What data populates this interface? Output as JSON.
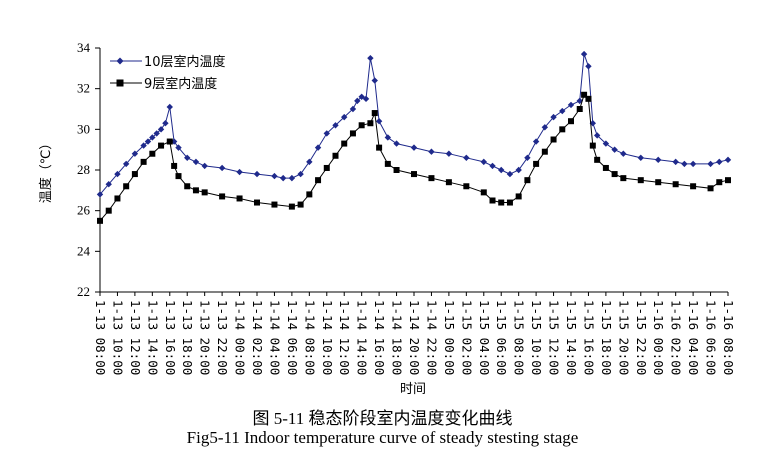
{
  "chart_data": {
    "type": "line",
    "xlabel": "时间",
    "ylabel": "温度（℃）",
    "ylim": [
      22,
      34
    ],
    "yticks": [
      22,
      24,
      26,
      28,
      30,
      32,
      34
    ],
    "grid": false,
    "legend_position": "top-left",
    "x_tick_labels": [
      "1-13 08:00",
      "1-13 10:00",
      "1-13 12:00",
      "1-13 14:00",
      "1-13 16:00",
      "1-13 18:00",
      "1-13 20:00",
      "1-13 22:00",
      "1-14 00:00",
      "1-14 02:00",
      "1-14 04:00",
      "1-14 06:00",
      "1-14 08:00",
      "1-14 10:00",
      "1-14 12:00",
      "1-14 14:00",
      "1-14 16:00",
      "1-14 18:00",
      "1-14 20:00",
      "1-14 22:00",
      "1-15 00:00",
      "1-15 02:00",
      "1-15 04:00",
      "1-15 06:00",
      "1-15 08:00",
      "1-15 10:00",
      "1-15 12:00",
      "1-15 14:00",
      "1-15 16:00",
      "1-15 18:00",
      "1-15 20:00",
      "1-15 22:00",
      "1-16 00:00",
      "1-16 02:00",
      "1-16 04:00",
      "1-16 06:00",
      "1-16 08:00"
    ],
    "x_hours_range": [
      0,
      72
    ],
    "series": [
      {
        "name": "10层室内温度",
        "color": "#1f2a8c",
        "marker": "diamond",
        "points": [
          [
            0,
            26.8
          ],
          [
            1,
            27.3
          ],
          [
            2,
            27.8
          ],
          [
            3,
            28.3
          ],
          [
            4,
            28.8
          ],
          [
            5,
            29.2
          ],
          [
            5.5,
            29.4
          ],
          [
            6,
            29.6
          ],
          [
            6.5,
            29.8
          ],
          [
            7,
            30.0
          ],
          [
            7.5,
            30.3
          ],
          [
            8,
            31.1
          ],
          [
            8.5,
            29.4
          ],
          [
            9,
            29.1
          ],
          [
            10,
            28.6
          ],
          [
            11,
            28.4
          ],
          [
            12,
            28.2
          ],
          [
            14,
            28.1
          ],
          [
            16,
            27.9
          ],
          [
            18,
            27.8
          ],
          [
            20,
            27.7
          ],
          [
            21,
            27.6
          ],
          [
            22,
            27.6
          ],
          [
            23,
            27.8
          ],
          [
            24,
            28.4
          ],
          [
            25,
            29.1
          ],
          [
            26,
            29.8
          ],
          [
            27,
            30.2
          ],
          [
            28,
            30.6
          ],
          [
            29,
            31.0
          ],
          [
            29.5,
            31.4
          ],
          [
            30,
            31.6
          ],
          [
            30.5,
            31.5
          ],
          [
            31,
            33.5
          ],
          [
            31.5,
            32.4
          ],
          [
            32,
            30.4
          ],
          [
            33,
            29.6
          ],
          [
            34,
            29.3
          ],
          [
            36,
            29.1
          ],
          [
            38,
            28.9
          ],
          [
            40,
            28.8
          ],
          [
            42,
            28.6
          ],
          [
            44,
            28.4
          ],
          [
            45,
            28.2
          ],
          [
            46,
            28.0
          ],
          [
            47,
            27.8
          ],
          [
            48,
            28.0
          ],
          [
            49,
            28.6
          ],
          [
            50,
            29.4
          ],
          [
            51,
            30.1
          ],
          [
            52,
            30.6
          ],
          [
            53,
            30.9
          ],
          [
            54,
            31.2
          ],
          [
            55,
            31.4
          ],
          [
            55.5,
            33.7
          ],
          [
            56,
            33.1
          ],
          [
            56.5,
            30.3
          ],
          [
            57,
            29.7
          ],
          [
            58,
            29.3
          ],
          [
            59,
            29.0
          ],
          [
            60,
            28.8
          ],
          [
            62,
            28.6
          ],
          [
            64,
            28.5
          ],
          [
            66,
            28.4
          ],
          [
            67,
            28.3
          ],
          [
            68,
            28.3
          ],
          [
            70,
            28.3
          ],
          [
            71,
            28.4
          ],
          [
            72,
            28.5
          ]
        ]
      },
      {
        "name": "9层室内温度",
        "color": "#000000",
        "marker": "square",
        "points": [
          [
            0,
            25.5
          ],
          [
            1,
            26.0
          ],
          [
            2,
            26.6
          ],
          [
            3,
            27.2
          ],
          [
            4,
            27.8
          ],
          [
            5,
            28.4
          ],
          [
            6,
            28.8
          ],
          [
            7,
            29.2
          ],
          [
            8,
            29.4
          ],
          [
            8.5,
            28.2
          ],
          [
            9,
            27.7
          ],
          [
            10,
            27.2
          ],
          [
            11,
            27.0
          ],
          [
            12,
            26.9
          ],
          [
            14,
            26.7
          ],
          [
            16,
            26.6
          ],
          [
            18,
            26.4
          ],
          [
            20,
            26.3
          ],
          [
            22,
            26.2
          ],
          [
            23,
            26.3
          ],
          [
            24,
            26.8
          ],
          [
            25,
            27.5
          ],
          [
            26,
            28.1
          ],
          [
            27,
            28.7
          ],
          [
            28,
            29.3
          ],
          [
            29,
            29.8
          ],
          [
            30,
            30.2
          ],
          [
            31,
            30.3
          ],
          [
            31.5,
            30.8
          ],
          [
            32,
            29.1
          ],
          [
            33,
            28.3
          ],
          [
            34,
            28.0
          ],
          [
            36,
            27.8
          ],
          [
            38,
            27.6
          ],
          [
            40,
            27.4
          ],
          [
            42,
            27.2
          ],
          [
            44,
            26.9
          ],
          [
            45,
            26.5
          ],
          [
            46,
            26.4
          ],
          [
            47,
            26.4
          ],
          [
            48,
            26.7
          ],
          [
            49,
            27.5
          ],
          [
            50,
            28.3
          ],
          [
            51,
            28.9
          ],
          [
            52,
            29.5
          ],
          [
            53,
            30.0
          ],
          [
            54,
            30.4
          ],
          [
            55,
            31.0
          ],
          [
            55.5,
            31.7
          ],
          [
            56,
            31.5
          ],
          [
            56.5,
            29.2
          ],
          [
            57,
            28.5
          ],
          [
            58,
            28.1
          ],
          [
            59,
            27.8
          ],
          [
            60,
            27.6
          ],
          [
            62,
            27.5
          ],
          [
            64,
            27.4
          ],
          [
            66,
            27.3
          ],
          [
            68,
            27.2
          ],
          [
            70,
            27.1
          ],
          [
            71,
            27.4
          ],
          [
            72,
            27.5
          ]
        ]
      }
    ]
  },
  "caption_cn": "图 5-11  稳态阶段室内温度变化曲线",
  "caption_en": "Fig5-11 Indoor temperature curve of steady stesting stage"
}
